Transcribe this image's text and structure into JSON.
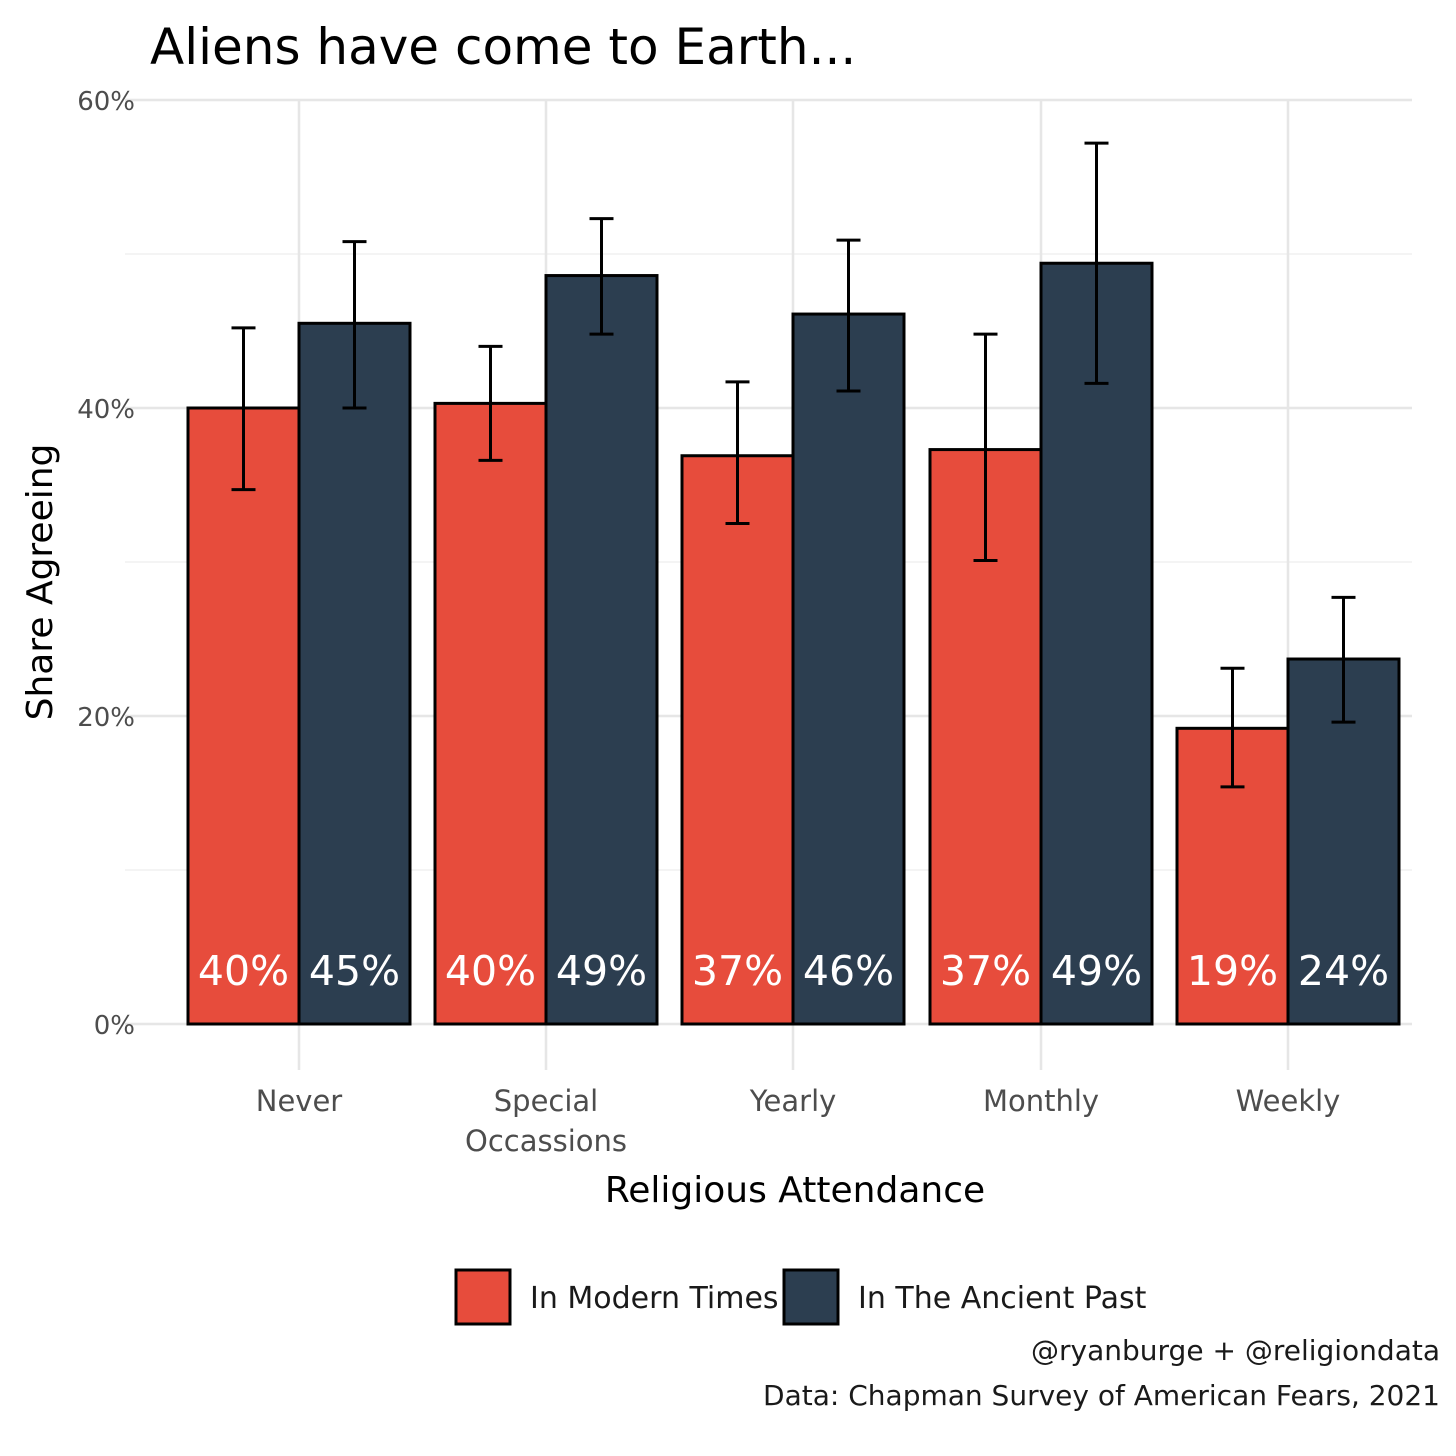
{
  "chart_data": {
    "type": "bar",
    "title": "Aliens have come to Earth...",
    "xlabel": "Religious Attendance",
    "ylabel": "Share Agreeing",
    "categories": [
      "Never",
      "Special\nOccassions",
      "Yearly",
      "Monthly",
      "Weekly"
    ],
    "ylim": [
      0,
      0.6
    ],
    "yticks": [
      0,
      0.2,
      0.4,
      0.6
    ],
    "ytick_labels": [
      "0%",
      "20%",
      "40%",
      "60%"
    ],
    "series": [
      {
        "name": "In Modern Times",
        "color": "#E74C3C",
        "values": [
          0.4,
          0.403,
          0.369,
          0.373,
          0.192
        ],
        "labels": [
          "40%",
          "40%",
          "37%",
          "37%",
          "19%"
        ],
        "error_low": [
          0.347,
          0.366,
          0.325,
          0.301,
          0.154
        ],
        "error_high": [
          0.452,
          0.44,
          0.417,
          0.448,
          0.231
        ]
      },
      {
        "name": "In The Ancient Past",
        "color": "#2C3E50",
        "values": [
          0.455,
          0.486,
          0.461,
          0.494,
          0.237
        ],
        "labels": [
          "45%",
          "49%",
          "46%",
          "49%",
          "24%"
        ],
        "error_low": [
          0.4,
          0.448,
          0.411,
          0.416,
          0.196
        ],
        "error_high": [
          0.508,
          0.523,
          0.509,
          0.572,
          0.277
        ]
      }
    ],
    "grid": true,
    "legend_position": "bottom",
    "caption": [
      "@ryanburge + @religiondata",
      "Data: Chapman Survey of American Fears, 2021"
    ]
  }
}
